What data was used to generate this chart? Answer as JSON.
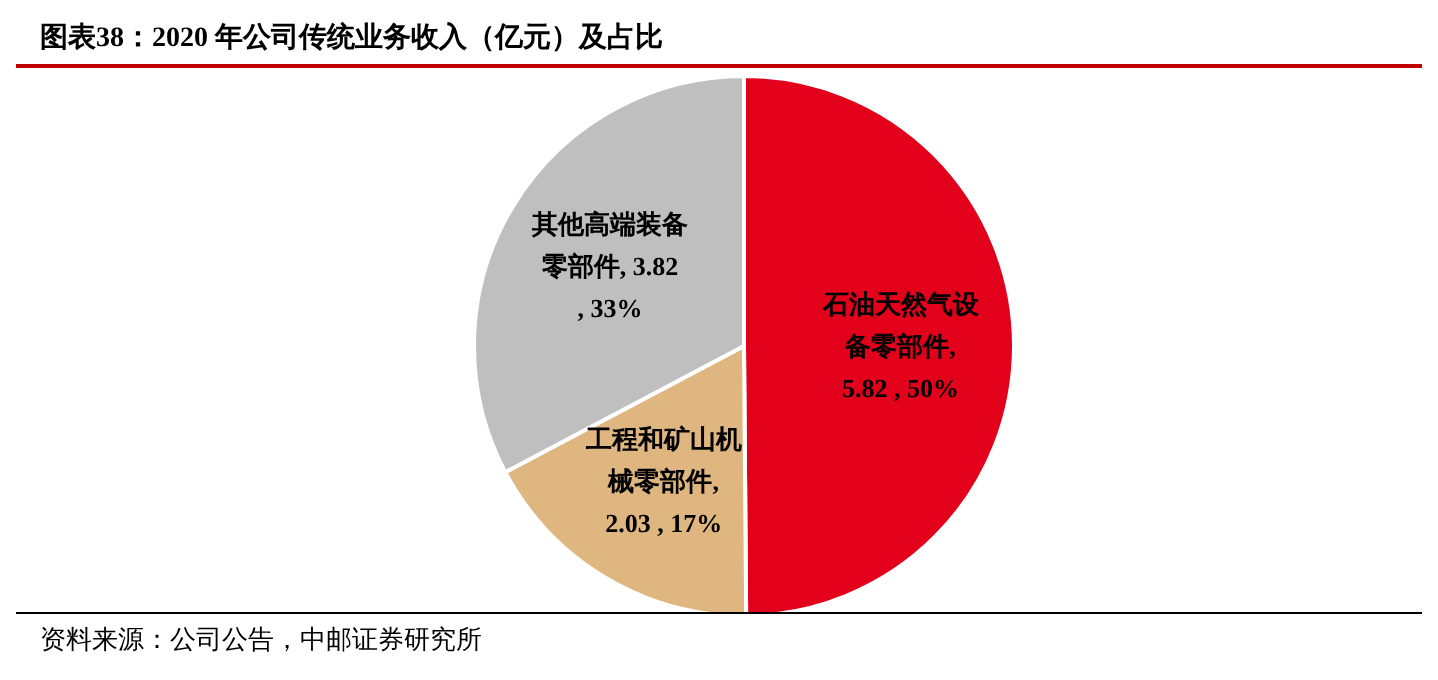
{
  "chart_data": {
    "type": "pie",
    "title": "图表38：2020 年公司传统业务收入（亿元）及占比",
    "categories": [
      "石油天然气设备零部件",
      "工程和矿山机械零部件",
      "其他高端装备零部件"
    ],
    "values": [
      5.82,
      2.03,
      3.82
    ],
    "colors": [
      "#e2001a",
      "#e0b680",
      "#bfbfbf"
    ],
    "value_labels": [
      ", 5.82 , 50%",
      ", 2.03 , 17%",
      ", 3.82 , 33%"
    ],
    "annotations": [
      "资料来源：公司公告，中邮证券研究所"
    ],
    "legend": false
  }
}
